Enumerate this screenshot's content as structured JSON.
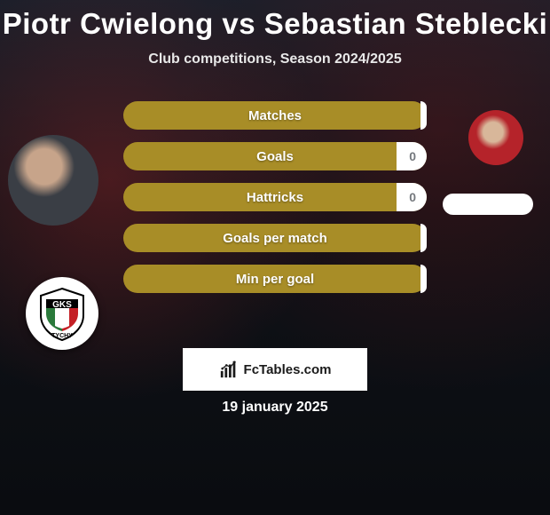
{
  "title": "Piotr Cwielong vs Sebastian Steblecki",
  "subtitle": "Club competitions, Season 2024/2025",
  "date": "19 january 2025",
  "footer_brand": "FcTables.com",
  "colors": {
    "bar_left": "#a88d27",
    "bar_right": "#ffffff",
    "background_top": "#1a1f2a",
    "background_bottom": "#0a0c10",
    "text_primary": "#ffffff",
    "text_muted": "#74787d"
  },
  "bars": [
    {
      "label": "Matches",
      "left": "",
      "right": "",
      "right_pct": 2
    },
    {
      "label": "Goals",
      "left": "",
      "right": "0",
      "right_pct": 10
    },
    {
      "label": "Hattricks",
      "left": "",
      "right": "0",
      "right_pct": 10
    },
    {
      "label": "Goals per match",
      "left": "",
      "right": "",
      "right_pct": 2
    },
    {
      "label": "Min per goal",
      "left": "",
      "right": "",
      "right_pct": 2
    }
  ],
  "badge": {
    "top_text": "GKS",
    "bottom_text": "TYCHY",
    "colors": {
      "green": "#2a7a3b",
      "red": "#c42026",
      "white": "#ffffff",
      "black": "#000000"
    }
  }
}
